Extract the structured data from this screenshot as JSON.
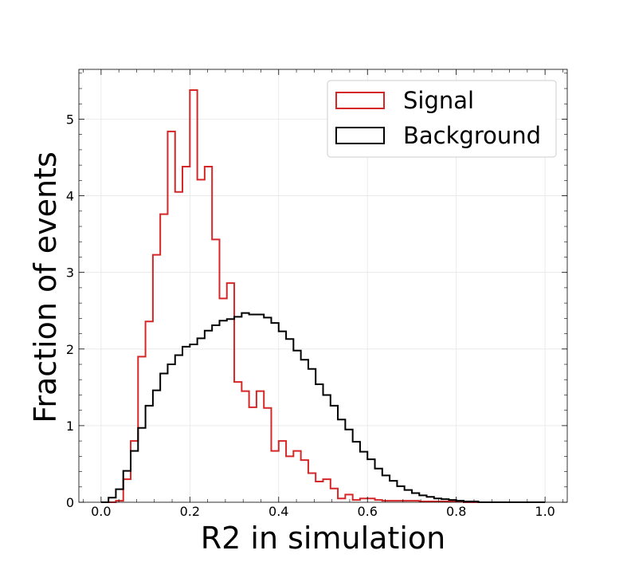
{
  "chart_data": {
    "type": "histogram",
    "title": "",
    "xlabel": "R2 in simulation",
    "ylabel": "Fraction of events",
    "xlim": [
      -0.05,
      1.05
    ],
    "ylim": [
      0,
      5.65
    ],
    "xticks": [
      0.0,
      0.2,
      0.4,
      0.6,
      0.8,
      1.0
    ],
    "xtick_labels": [
      "0.0",
      "0.2",
      "0.4",
      "0.6",
      "0.8",
      "1.0"
    ],
    "yticks": [
      0,
      1,
      2,
      3,
      4,
      5
    ],
    "ytick_labels": [
      "0",
      "1",
      "2",
      "3",
      "4",
      "5"
    ],
    "grid": true,
    "legend_position": "top-right",
    "bin_edges": [
      0.0,
      0.0167,
      0.0333,
      0.05,
      0.0667,
      0.0833,
      0.1,
      0.1167,
      0.1333,
      0.15,
      0.1667,
      0.1833,
      0.2,
      0.2167,
      0.2333,
      0.25,
      0.2667,
      0.2833,
      0.3,
      0.3167,
      0.3333,
      0.35,
      0.3667,
      0.3833,
      0.4,
      0.4167,
      0.4333,
      0.45,
      0.4667,
      0.4833,
      0.5,
      0.5167,
      0.5333,
      0.55,
      0.5667,
      0.5833,
      0.6,
      0.6167,
      0.6333,
      0.65,
      0.6667,
      0.6833,
      0.7,
      0.7167,
      0.7333,
      0.75,
      0.7667,
      0.7833,
      0.8,
      0.8167,
      0.8333,
      0.85,
      0.8667,
      0.8833,
      0.9,
      0.9167,
      0.9333,
      0.95,
      0.9667,
      0.9833,
      1.0
    ],
    "series": [
      {
        "name": "Signal",
        "color": "#d62728",
        "values": [
          0,
          0,
          0.02,
          0.3,
          0.8,
          1.9,
          2.36,
          3.23,
          3.76,
          4.84,
          4.05,
          4.38,
          5.38,
          4.21,
          4.38,
          3.43,
          2.66,
          2.86,
          1.57,
          1.45,
          1.24,
          1.45,
          1.23,
          0.67,
          0.8,
          0.6,
          0.67,
          0.55,
          0.38,
          0.27,
          0.3,
          0.18,
          0.05,
          0.1,
          0.03,
          0.05,
          0.05,
          0.03,
          0.02,
          0.02,
          0.02,
          0.02,
          0.02,
          0.01,
          0.01,
          0.01,
          0.01,
          0.01,
          0.01,
          0,
          0,
          0,
          0,
          0,
          0,
          0,
          0,
          0,
          0,
          0
        ]
      },
      {
        "name": "Background",
        "color": "#000000",
        "values": [
          0,
          0.06,
          0.17,
          0.41,
          0.67,
          0.97,
          1.26,
          1.46,
          1.68,
          1.8,
          1.92,
          2.03,
          2.06,
          2.14,
          2.24,
          2.31,
          2.37,
          2.39,
          2.42,
          2.47,
          2.45,
          2.45,
          2.41,
          2.34,
          2.23,
          2.13,
          1.98,
          1.86,
          1.74,
          1.54,
          1.4,
          1.26,
          1.08,
          0.95,
          0.79,
          0.66,
          0.56,
          0.44,
          0.35,
          0.28,
          0.21,
          0.16,
          0.12,
          0.09,
          0.07,
          0.05,
          0.04,
          0.03,
          0.02,
          0.01,
          0.01,
          0,
          0,
          0,
          0,
          0,
          0,
          0,
          0,
          0
        ]
      }
    ]
  }
}
